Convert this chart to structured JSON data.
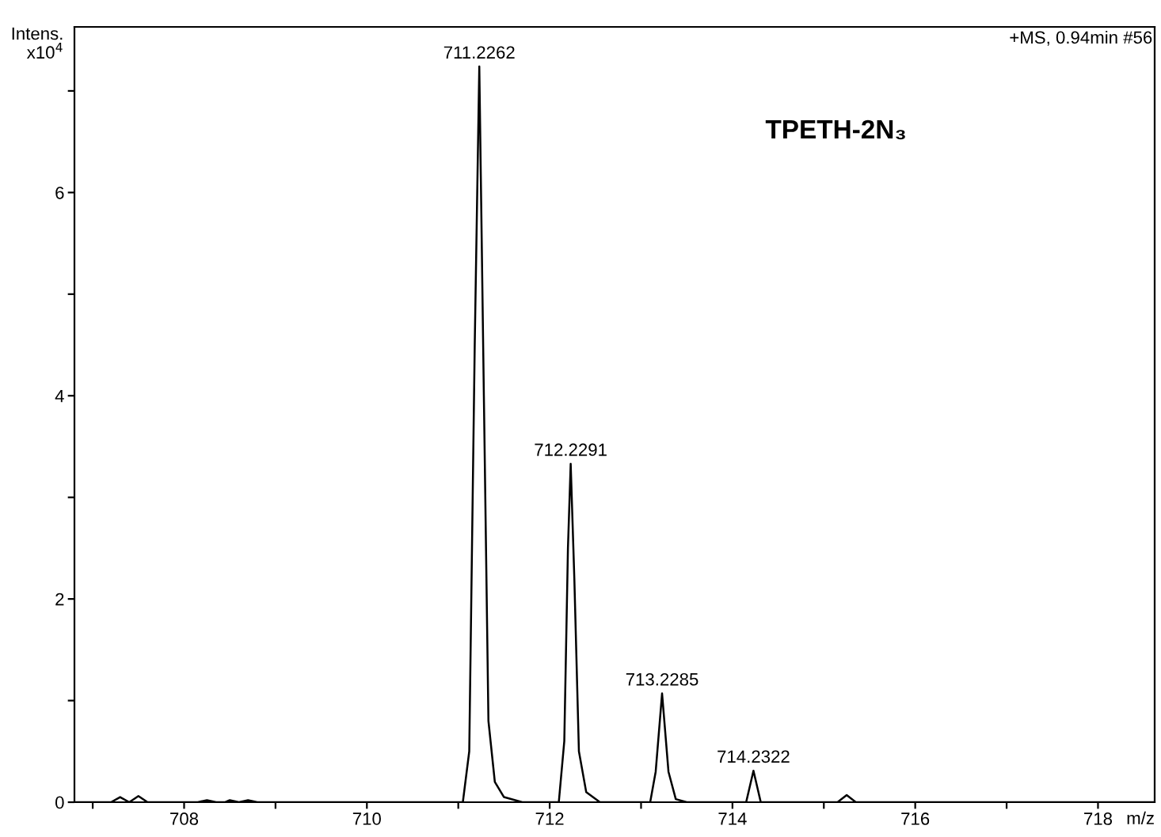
{
  "chart_data": {
    "type": "line",
    "xlabel": "m/z",
    "ylabel": "Intens.\nx10$^{4}$",
    "series": [
      {
        "color": "#000000",
        "x": [
          706.8,
          707.2,
          707.3,
          707.4,
          707.5,
          707.6,
          708.15,
          708.25,
          708.35,
          708.45,
          708.5,
          708.6,
          708.7,
          708.8,
          711.05,
          711.12,
          711.18,
          711.23,
          711.28,
          711.33,
          711.4,
          711.5,
          711.7,
          712.1,
          712.16,
          712.2,
          712.23,
          712.27,
          712.32,
          712.4,
          712.55,
          713.1,
          713.16,
          713.23,
          713.3,
          713.38,
          713.5,
          714.15,
          714.23,
          714.31,
          715.15,
          715.25,
          715.35,
          718.62
        ],
        "values": [
          0,
          0,
          0.05,
          0,
          0.06,
          0,
          0,
          0.02,
          0,
          0,
          0.02,
          0,
          0.02,
          0,
          0,
          0.5,
          4.5,
          7.24,
          4.0,
          0.8,
          0.2,
          0.05,
          0,
          0,
          0.6,
          2.5,
          3.33,
          2.2,
          0.5,
          0.1,
          0,
          0,
          0.3,
          1.07,
          0.3,
          0.03,
          0,
          0,
          0.31,
          0,
          0,
          0.07,
          0,
          0
        ]
      }
    ],
    "xlim": [
      706.8,
      718.62
    ],
    "ylim": [
      0,
      7.63
    ],
    "xticks": [
      {
        "value": 707,
        "label": null
      },
      708,
      {
        "value": 709,
        "label": null
      },
      710,
      {
        "value": 711,
        "label": null
      },
      712,
      {
        "value": 713,
        "label": null
      },
      714,
      {
        "value": 715,
        "label": null
      },
      716,
      {
        "value": 717,
        "label": null
      },
      718
    ],
    "yticks": [
      0,
      {
        "value": 1,
        "label": null
      },
      2,
      {
        "value": 3,
        "label": null
      },
      4,
      {
        "value": 5,
        "label": null
      },
      6,
      {
        "value": 7,
        "label": null
      }
    ],
    "grid": false,
    "legend": false,
    "marker": "none",
    "line_style": "solid",
    "annotations": [
      {
        "text": "711.2262",
        "x": 711.23,
        "y": 7.24
      },
      {
        "text": "712.2291",
        "x": 712.23,
        "y": 3.33
      },
      {
        "text": "713.2285",
        "x": 713.23,
        "y": 1.07
      },
      {
        "text": "714.2322",
        "x": 714.23,
        "y": 0.31
      },
      "+MS, 0.94min #56",
      "TPETH-2N₃"
    ]
  }
}
